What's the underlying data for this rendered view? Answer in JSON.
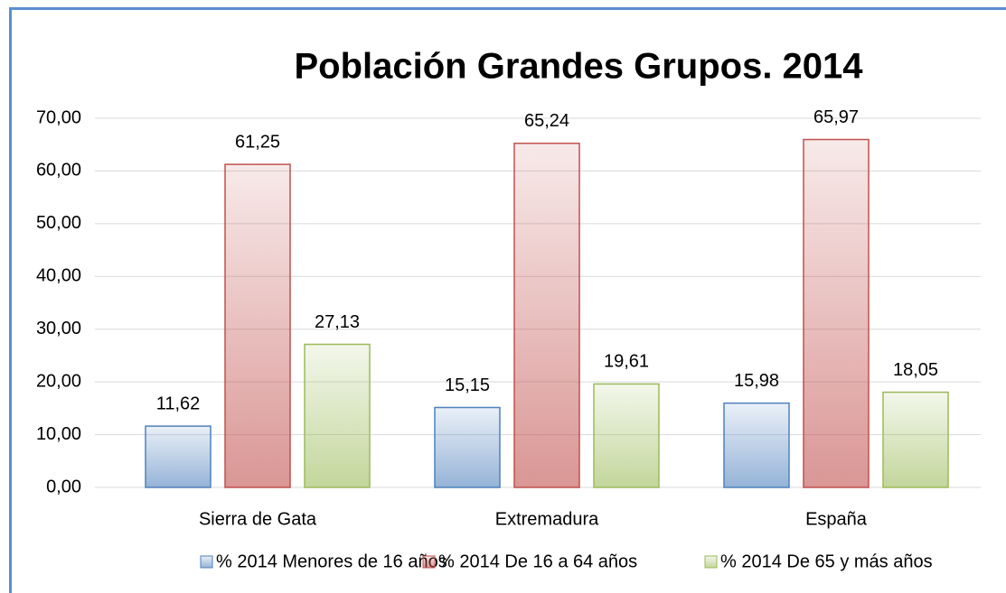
{
  "chart_data": {
    "type": "bar",
    "title": "Población Grandes Grupos. 2014",
    "categories": [
      "Sierra de Gata",
      "Extremadura",
      "España"
    ],
    "series": [
      {
        "name": "% 2014 Menores de 16 años",
        "color": "#4f81bd",
        "values": [
          11.62,
          15.15,
          15.98
        ],
        "value_labels": [
          "11,62",
          "15,15",
          "15,98"
        ]
      },
      {
        "name": "% 2014 De 16 a 64 años",
        "color": "#c0504d",
        "values": [
          61.25,
          65.24,
          65.97
        ],
        "value_labels": [
          "61,25",
          "65,24",
          "65,97"
        ]
      },
      {
        "name": "% 2014 De 65 y más años",
        "color": "#9bbb59",
        "values": [
          27.13,
          19.61,
          18.05
        ],
        "value_labels": [
          "27,13",
          "19,61",
          "18,05"
        ]
      }
    ],
    "ylim": [
      0,
      70
    ],
    "yticks": [
      {
        "value": 0,
        "label": "0,00"
      },
      {
        "value": 10,
        "label": "10,00"
      },
      {
        "value": 20,
        "label": "20,00"
      },
      {
        "value": 30,
        "label": "30,00"
      },
      {
        "value": 40,
        "label": "40,00"
      },
      {
        "value": 50,
        "label": "50,00"
      },
      {
        "value": 60,
        "label": "60,00"
      },
      {
        "value": 70,
        "label": "70,00"
      }
    ],
    "grid": true,
    "legend": "bottom"
  }
}
